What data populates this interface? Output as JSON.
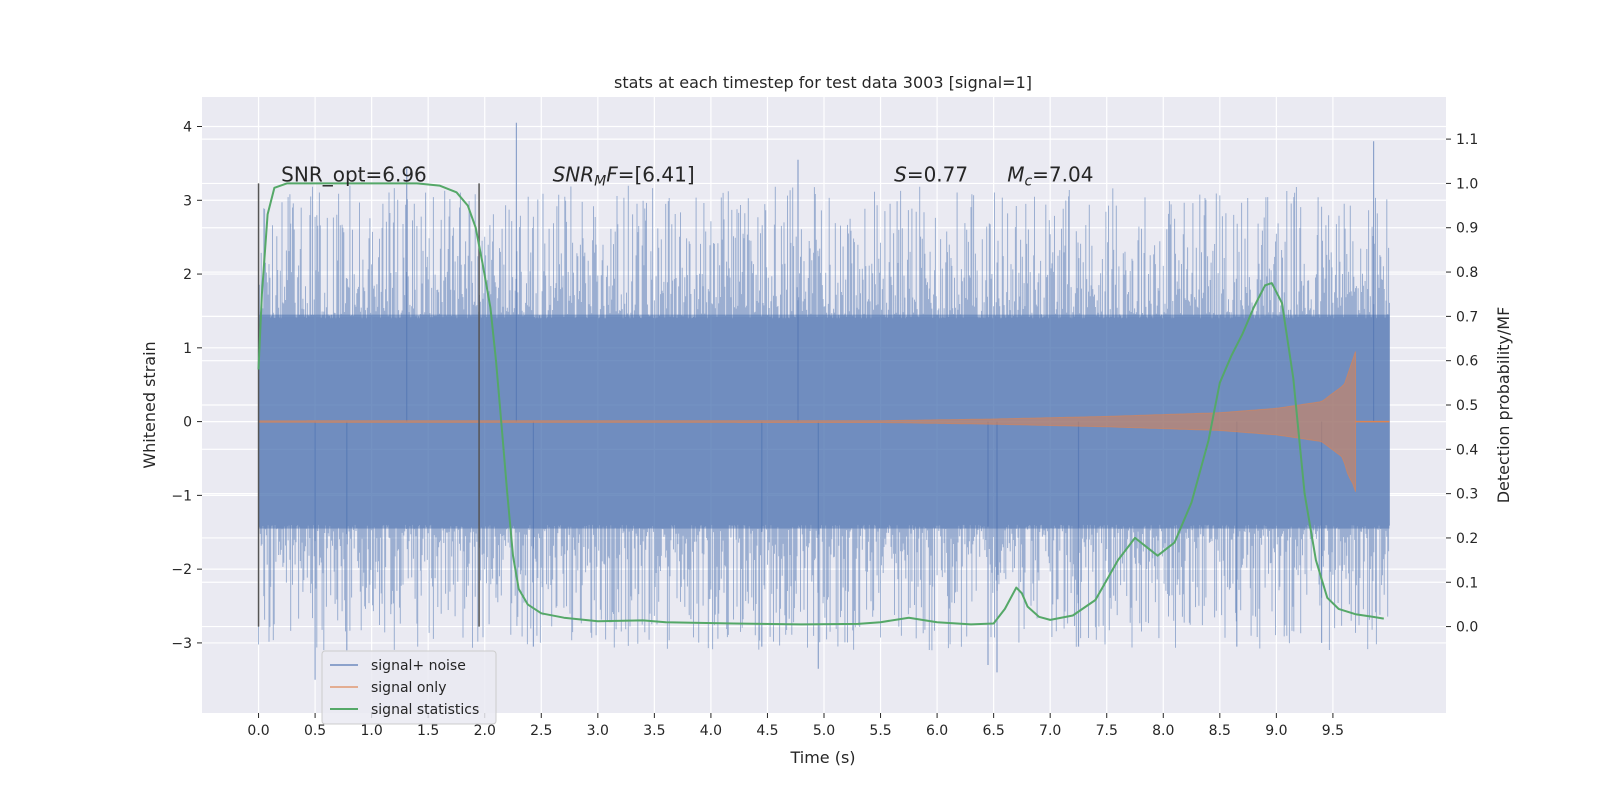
{
  "chart_data": {
    "type": "line",
    "title": "stats at each timestep for test data 3003 [signal=1]",
    "xlabel": "Time (s)",
    "ylabel": "Whitened strain",
    "y2label": "Detection probability/MF",
    "xlim": [
      -0.5,
      10.5
    ],
    "ylim": [
      -3.95,
      4.4
    ],
    "y2lim": [
      -0.195,
      1.195
    ],
    "x_ticks": [
      0.0,
      0.5,
      1.0,
      1.5,
      2.0,
      2.5,
      3.0,
      3.5,
      4.0,
      4.5,
      5.0,
      5.5,
      6.0,
      6.5,
      7.0,
      7.5,
      8.0,
      8.5,
      9.0,
      9.5
    ],
    "x_tick_labels": [
      "0.0",
      "0.5",
      "1.0",
      "1.5",
      "2.0",
      "2.5",
      "3.0",
      "3.5",
      "4.0",
      "4.5",
      "5.0",
      "5.5",
      "6.0",
      "6.5",
      "7.0",
      "7.5",
      "8.0",
      "8.5",
      "9.0",
      "9.5"
    ],
    "y_ticks": [
      -3,
      -2,
      -1,
      0,
      1,
      2,
      3,
      4
    ],
    "y_tick_labels": [
      "−3",
      "−2",
      "−1",
      "0",
      "1",
      "2",
      "3",
      "4"
    ],
    "y2_ticks": [
      0.0,
      0.1,
      0.2,
      0.3,
      0.4,
      0.5,
      0.6,
      0.7,
      0.8,
      0.9,
      1.0,
      1.1
    ],
    "y2_tick_labels": [
      "0.0",
      "0.1",
      "0.2",
      "0.3",
      "0.4",
      "0.5",
      "0.6",
      "0.7",
      "0.8",
      "0.9",
      "1.0",
      "1.1"
    ],
    "grid": true,
    "legend_position": "lower-left",
    "series": [
      {
        "name": "signal+ noise",
        "axis": "left",
        "color": "#4c72b0",
        "style": "dense noise trace",
        "x_range": [
          0.0,
          10.0
        ],
        "core_band": [
          -1.45,
          1.45
        ],
        "extreme_peaks": [
          [
            2.28,
            4.05
          ],
          [
            1.31,
            3.45
          ],
          [
            4.77,
            3.55
          ],
          [
            9.86,
            3.8
          ],
          [
            0.5,
            -3.5
          ],
          [
            4.95,
            -3.35
          ],
          [
            6.45,
            -3.3
          ],
          [
            2.43,
            -3.05
          ],
          [
            8.65,
            -3.05
          ],
          [
            6.53,
            -3.4
          ],
          [
            0.78,
            -3.1
          ],
          [
            4.45,
            -3.05
          ],
          [
            7.25,
            -3.05
          ],
          [
            9.4,
            -3.0
          ]
        ]
      },
      {
        "name": "signal only",
        "axis": "left",
        "color": "#dd8452",
        "style": "chirp",
        "x_range": [
          0.0,
          10.0
        ],
        "merger_time": 9.7,
        "envelope": [
          [
            0.0,
            0.01
          ],
          [
            5.5,
            0.012
          ],
          [
            6.5,
            0.035
          ],
          [
            7.5,
            0.07
          ],
          [
            8.5,
            0.12
          ],
          [
            9.0,
            0.18
          ],
          [
            9.4,
            0.27
          ],
          [
            9.6,
            0.5
          ],
          [
            9.7,
            0.95
          ]
        ],
        "merger_low": -0.8
      },
      {
        "name": "signal statistics",
        "axis": "right",
        "color": "#55a868",
        "points": [
          [
            0.0,
            0.58
          ],
          [
            0.03,
            0.75
          ],
          [
            0.08,
            0.93
          ],
          [
            0.14,
            0.99
          ],
          [
            0.25,
            1.0
          ],
          [
            0.5,
            1.0
          ],
          [
            1.0,
            1.0
          ],
          [
            1.4,
            1.0
          ],
          [
            1.6,
            0.995
          ],
          [
            1.75,
            0.98
          ],
          [
            1.85,
            0.95
          ],
          [
            1.92,
            0.9
          ],
          [
            1.98,
            0.82
          ],
          [
            2.05,
            0.72
          ],
          [
            2.1,
            0.6
          ],
          [
            2.15,
            0.45
          ],
          [
            2.2,
            0.3
          ],
          [
            2.25,
            0.16
          ],
          [
            2.3,
            0.085
          ],
          [
            2.38,
            0.05
          ],
          [
            2.5,
            0.03
          ],
          [
            2.7,
            0.02
          ],
          [
            3.0,
            0.012
          ],
          [
            3.4,
            0.014
          ],
          [
            3.6,
            0.01
          ],
          [
            4.2,
            0.007
          ],
          [
            4.8,
            0.005
          ],
          [
            5.3,
            0.006
          ],
          [
            5.5,
            0.01
          ],
          [
            5.75,
            0.02
          ],
          [
            6.0,
            0.01
          ],
          [
            6.3,
            0.005
          ],
          [
            6.5,
            0.007
          ],
          [
            6.6,
            0.04
          ],
          [
            6.7,
            0.088
          ],
          [
            6.75,
            0.075
          ],
          [
            6.8,
            0.045
          ],
          [
            6.9,
            0.022
          ],
          [
            7.0,
            0.015
          ],
          [
            7.2,
            0.025
          ],
          [
            7.4,
            0.06
          ],
          [
            7.6,
            0.15
          ],
          [
            7.75,
            0.2
          ],
          [
            7.85,
            0.18
          ],
          [
            7.95,
            0.16
          ],
          [
            8.1,
            0.19
          ],
          [
            8.25,
            0.28
          ],
          [
            8.4,
            0.42
          ],
          [
            8.5,
            0.55
          ],
          [
            8.6,
            0.61
          ],
          [
            8.7,
            0.66
          ],
          [
            8.8,
            0.72
          ],
          [
            8.9,
            0.77
          ],
          [
            8.96,
            0.775
          ],
          [
            9.05,
            0.73
          ],
          [
            9.15,
            0.56
          ],
          [
            9.25,
            0.3
          ],
          [
            9.35,
            0.15
          ],
          [
            9.45,
            0.065
          ],
          [
            9.55,
            0.04
          ],
          [
            9.7,
            0.028
          ],
          [
            9.85,
            0.022
          ],
          [
            9.95,
            0.018
          ]
        ]
      }
    ],
    "vertical_lines": [
      {
        "x": 0.0,
        "y_range": [
          0.0,
          1.0
        ],
        "color": "#555555"
      },
      {
        "x": 1.95,
        "y_range": [
          0.0,
          1.0
        ],
        "color": "#555555"
      }
    ],
    "annotations": [
      {
        "text": "SNR_opt=6.96",
        "x": 0.2,
        "y2": 1.0
      },
      {
        "text": "SNR_MF=[6.41]",
        "x": 2.6,
        "y2": 1.0,
        "rich": "snrmf"
      },
      {
        "text": "S=0.77",
        "x": 5.62,
        "y2": 1.0,
        "rich": "s"
      },
      {
        "text": "M_c=7.04",
        "x": 6.62,
        "y2": 1.0,
        "rich": "mc"
      }
    ]
  }
}
